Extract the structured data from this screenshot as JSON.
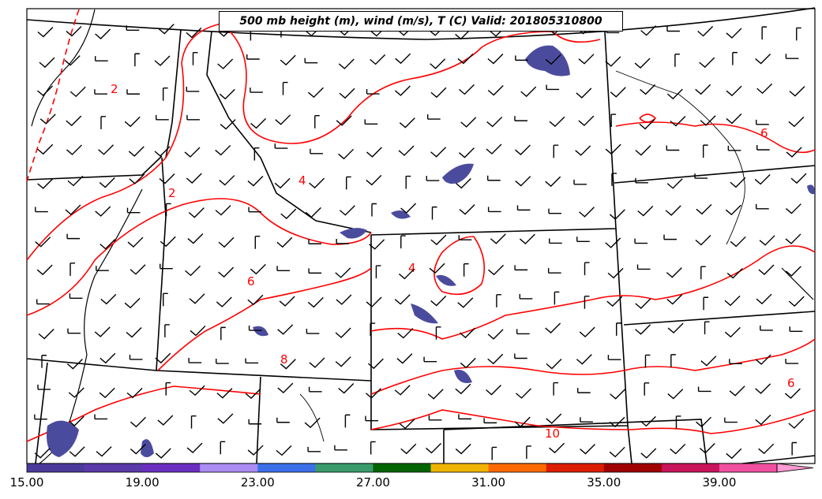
{
  "map": {
    "title": "500 mb height (m), wind (m/s), T (C) Valid: 201805310800",
    "contour_color": "#ff0000",
    "boundary_color": "#000000",
    "precip_fill_color": "#4b4b9e",
    "contour_labels": [
      "2",
      "2",
      "4",
      "4",
      "6",
      "6",
      "6",
      "8",
      "10"
    ],
    "wind_barbs": "black-barbs-light-westerly"
  },
  "colorbar": {
    "tick_labels": [
      "15.00",
      "19.00",
      "23.00",
      "27.00",
      "31.00",
      "35.00",
      "39.00"
    ],
    "colors": [
      "#4b3a9a",
      "#5a3aa8",
      "#6b2fc0",
      "#aa8cf2",
      "#3b6fe8",
      "#3a9a6b",
      "#006400",
      "#f0b400",
      "#ff6a00",
      "#dc1e00",
      "#a00000",
      "#c8145a",
      "#f050a0",
      "#ff9ad2"
    ]
  }
}
